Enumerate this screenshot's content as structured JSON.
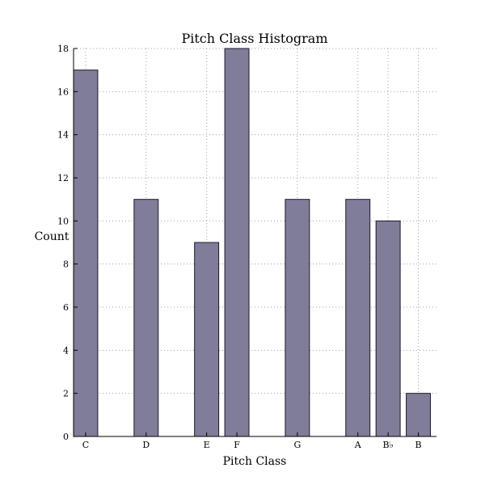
{
  "chart_data": {
    "type": "bar",
    "title": "Pitch Class Histogram",
    "xlabel": "Pitch Class",
    "ylabel": "Count",
    "categories": [
      "C",
      "D",
      "E",
      "F",
      "G",
      "A",
      "B♭",
      "B"
    ],
    "semitone_positions": [
      0,
      2,
      4,
      5,
      7,
      9,
      10,
      11
    ],
    "values": [
      17,
      11,
      9,
      18,
      11,
      11,
      10,
      2
    ],
    "ylim": [
      0,
      18
    ],
    "yticks": [
      0,
      2,
      4,
      6,
      8,
      10,
      12,
      14,
      16,
      18
    ],
    "grid": true,
    "bar_color": "#7f7d97",
    "bar_edge_color": "#1c1a2e",
    "grid_color": "#a0a0a0"
  }
}
